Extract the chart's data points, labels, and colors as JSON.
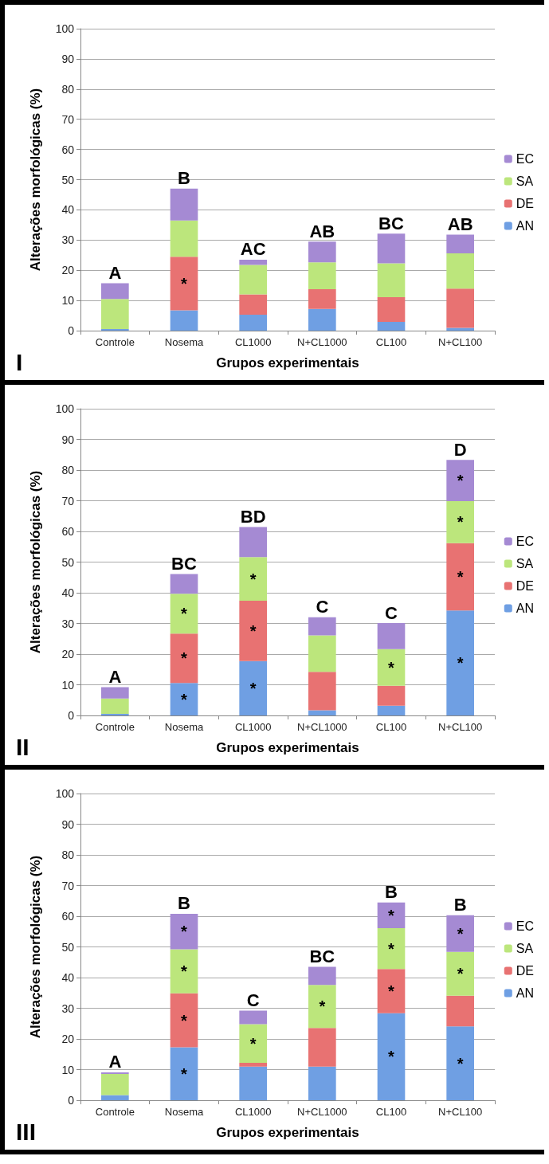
{
  "chart_data": [
    {
      "type": "bar",
      "stacked": true,
      "xlabel": "Grupos experimentais",
      "ylabel": "Alterações morfológicas (%)",
      "categories": [
        "Controle",
        "Nosema",
        "CL1000",
        "N+CL1000",
        "CL100",
        "N+CL100"
      ],
      "ylim": [
        0,
        100
      ],
      "yticks": [
        0,
        10,
        20,
        30,
        40,
        50,
        60,
        70,
        80,
        90,
        100
      ],
      "grid": "y",
      "legend": "right",
      "series": [
        {
          "name": "AN",
          "color": "#6f9fe3",
          "values": [
            0.5,
            6.7,
            5.3,
            7.2,
            2.9,
            0.9
          ]
        },
        {
          "name": "DE",
          "color": "#e87272",
          "values": [
            0,
            17.8,
            6.7,
            6.5,
            8.2,
            13
          ],
          "value_labels": [
            null,
            "*",
            null,
            null,
            null,
            null
          ]
        },
        {
          "name": "SA",
          "color": "#bce67c",
          "values": [
            10,
            12,
            9.8,
            8.9,
            11.2,
            11.7
          ]
        },
        {
          "name": "EC",
          "color": "#a58ad3",
          "values": [
            5.2,
            10.5,
            1.7,
            6.9,
            9.8,
            6.2
          ]
        }
      ],
      "annotations": [
        {
          "text": "A",
          "x": "Controle",
          "y": 15.7
        },
        {
          "text": "B",
          "x": "Nosema",
          "y": 47
        },
        {
          "text": "AC",
          "x": "CL1000",
          "y": 23.5
        },
        {
          "text": "AB",
          "x": "N+CL1000",
          "y": 29.5
        },
        {
          "text": "BC",
          "x": "CL100",
          "y": 32.1
        },
        {
          "text": "AB",
          "x": "N+CL100",
          "y": 31.8
        },
        "I"
      ]
    },
    {
      "type": "bar",
      "stacked": true,
      "xlabel": "Grupos experimentais",
      "ylabel": "Alterações morfológicas (%)",
      "categories": [
        "Controle",
        "Nosema",
        "CL1000",
        "N+CL1000",
        "CL100",
        "N+CL100"
      ],
      "ylim": [
        0,
        100
      ],
      "yticks": [
        0,
        10,
        20,
        30,
        40,
        50,
        60,
        70,
        80,
        90,
        100
      ],
      "grid": "y",
      "legend": "right",
      "series": [
        {
          "name": "AN",
          "color": "#6f9fe3",
          "values": [
            0.5,
            10.6,
            17.7,
            1.7,
            3.2,
            34.2
          ],
          "value_labels": [
            null,
            "*",
            "*",
            null,
            null,
            "*"
          ]
        },
        {
          "name": "DE",
          "color": "#e87272",
          "values": [
            0,
            16.1,
            19.7,
            12.5,
            6.5,
            22
          ],
          "value_labels": [
            null,
            "*",
            "*",
            null,
            null,
            "*"
          ]
        },
        {
          "name": "SA",
          "color": "#bce67c",
          "values": [
            5,
            13,
            14.2,
            11.9,
            11.9,
            13.7
          ],
          "value_labels": [
            null,
            "*",
            "*",
            null,
            "*",
            "*"
          ]
        },
        {
          "name": "EC",
          "color": "#a58ad3",
          "values": [
            3.7,
            6.4,
            9.8,
            5.9,
            8.5,
            13.4
          ],
          "value_labels": [
            null,
            null,
            null,
            null,
            null,
            "*"
          ]
        }
      ],
      "annotations": [
        {
          "text": "A",
          "x": "Controle",
          "y": 9.2
        },
        {
          "text": "BC",
          "x": "Nosema",
          "y": 46.1
        },
        {
          "text": "BD",
          "x": "CL1000",
          "y": 61.4
        },
        {
          "text": "C",
          "x": "N+CL1000",
          "y": 32
        },
        {
          "text": "C",
          "x": "CL100",
          "y": 30.1
        },
        {
          "text": "D",
          "x": "N+CL100",
          "y": 83.3
        },
        "II"
      ]
    },
    {
      "type": "bar",
      "stacked": true,
      "xlabel": "Grupos experimentais",
      "ylabel": "Alterações morfológicas (%)",
      "categories": [
        "Controle",
        "Nosema",
        "CL1000",
        "N+CL1000",
        "CL100",
        "N+CL100"
      ],
      "ylim": [
        0,
        100
      ],
      "yticks": [
        0,
        10,
        20,
        30,
        40,
        50,
        60,
        70,
        80,
        90,
        100
      ],
      "grid": "y",
      "legend": "right",
      "series": [
        {
          "name": "AN",
          "color": "#6f9fe3",
          "values": [
            1.7,
            17.3,
            11,
            11,
            28.4,
            24.1
          ],
          "value_labels": [
            null,
            "*",
            null,
            null,
            "*",
            "*"
          ]
        },
        {
          "name": "DE",
          "color": "#e87272",
          "values": [
            0,
            17.6,
            1.2,
            12.6,
            14.4,
            10
          ],
          "value_labels": [
            null,
            "*",
            null,
            null,
            "*",
            null
          ]
        },
        {
          "name": "SA",
          "color": "#bce67c",
          "values": [
            6.9,
            14.3,
            12.6,
            14,
            13.3,
            14.3
          ],
          "value_labels": [
            null,
            "*",
            "*",
            "*",
            "*",
            "*"
          ]
        },
        {
          "name": "EC",
          "color": "#a58ad3",
          "values": [
            0.5,
            11.6,
            4.4,
            5.9,
            8.4,
            11.9
          ],
          "value_labels": [
            null,
            "*",
            null,
            null,
            "*",
            "*"
          ]
        }
      ],
      "annotations": [
        {
          "text": "A",
          "x": "Controle",
          "y": 9.1
        },
        {
          "text": "B",
          "x": "Nosema",
          "y": 60.8
        },
        {
          "text": "C",
          "x": "CL1000",
          "y": 29.2
        },
        {
          "text": "BC",
          "x": "N+CL1000",
          "y": 43.5
        },
        {
          "text": "B",
          "x": "CL100",
          "y": 64.5
        },
        {
          "text": "B",
          "x": "N+CL100",
          "y": 60.3
        },
        "III"
      ]
    }
  ]
}
